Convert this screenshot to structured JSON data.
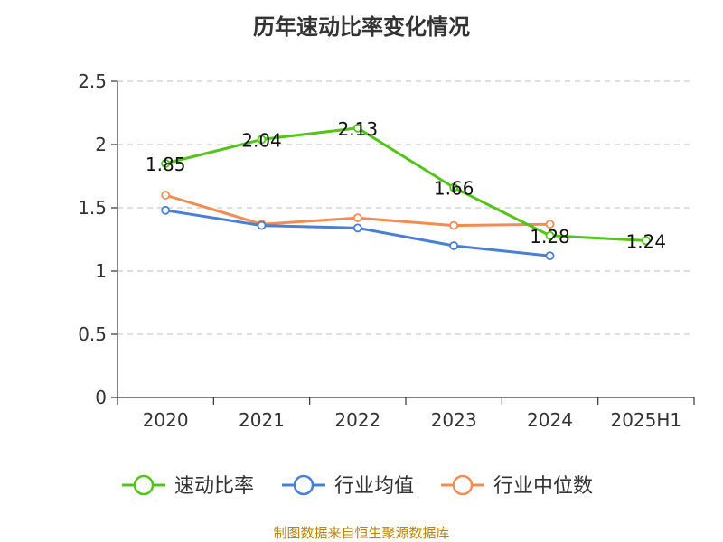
{
  "title": "历年速动比率变化情况",
  "source": "制图数据来自恒生聚源数据库",
  "chart_data": {
    "type": "line",
    "title": "历年速动比率变化情况",
    "categories": [
      "2020",
      "2021",
      "2022",
      "2023",
      "2024",
      "2025H1"
    ],
    "ylim": [
      0,
      2.5
    ],
    "yticks": [
      "0",
      "0.5",
      "1",
      "1.5",
      "2",
      "2.5"
    ],
    "grid": true,
    "legend_position": "bottom",
    "series": [
      {
        "name": "速动比率",
        "color": "#52c41a",
        "values": [
          1.85,
          2.04,
          2.13,
          1.66,
          1.28,
          1.24
        ],
        "labels": [
          "1.85",
          "2.04",
          "2.13",
          "1.66",
          "1.28",
          "1.24"
        ]
      },
      {
        "name": "行业均值",
        "color": "#4a7fd6",
        "values": [
          1.48,
          1.36,
          1.34,
          1.2,
          1.12,
          null
        ]
      },
      {
        "name": "行业中位数",
        "color": "#f28c55",
        "values": [
          1.6,
          1.37,
          1.42,
          1.36,
          1.37,
          null
        ]
      }
    ]
  }
}
